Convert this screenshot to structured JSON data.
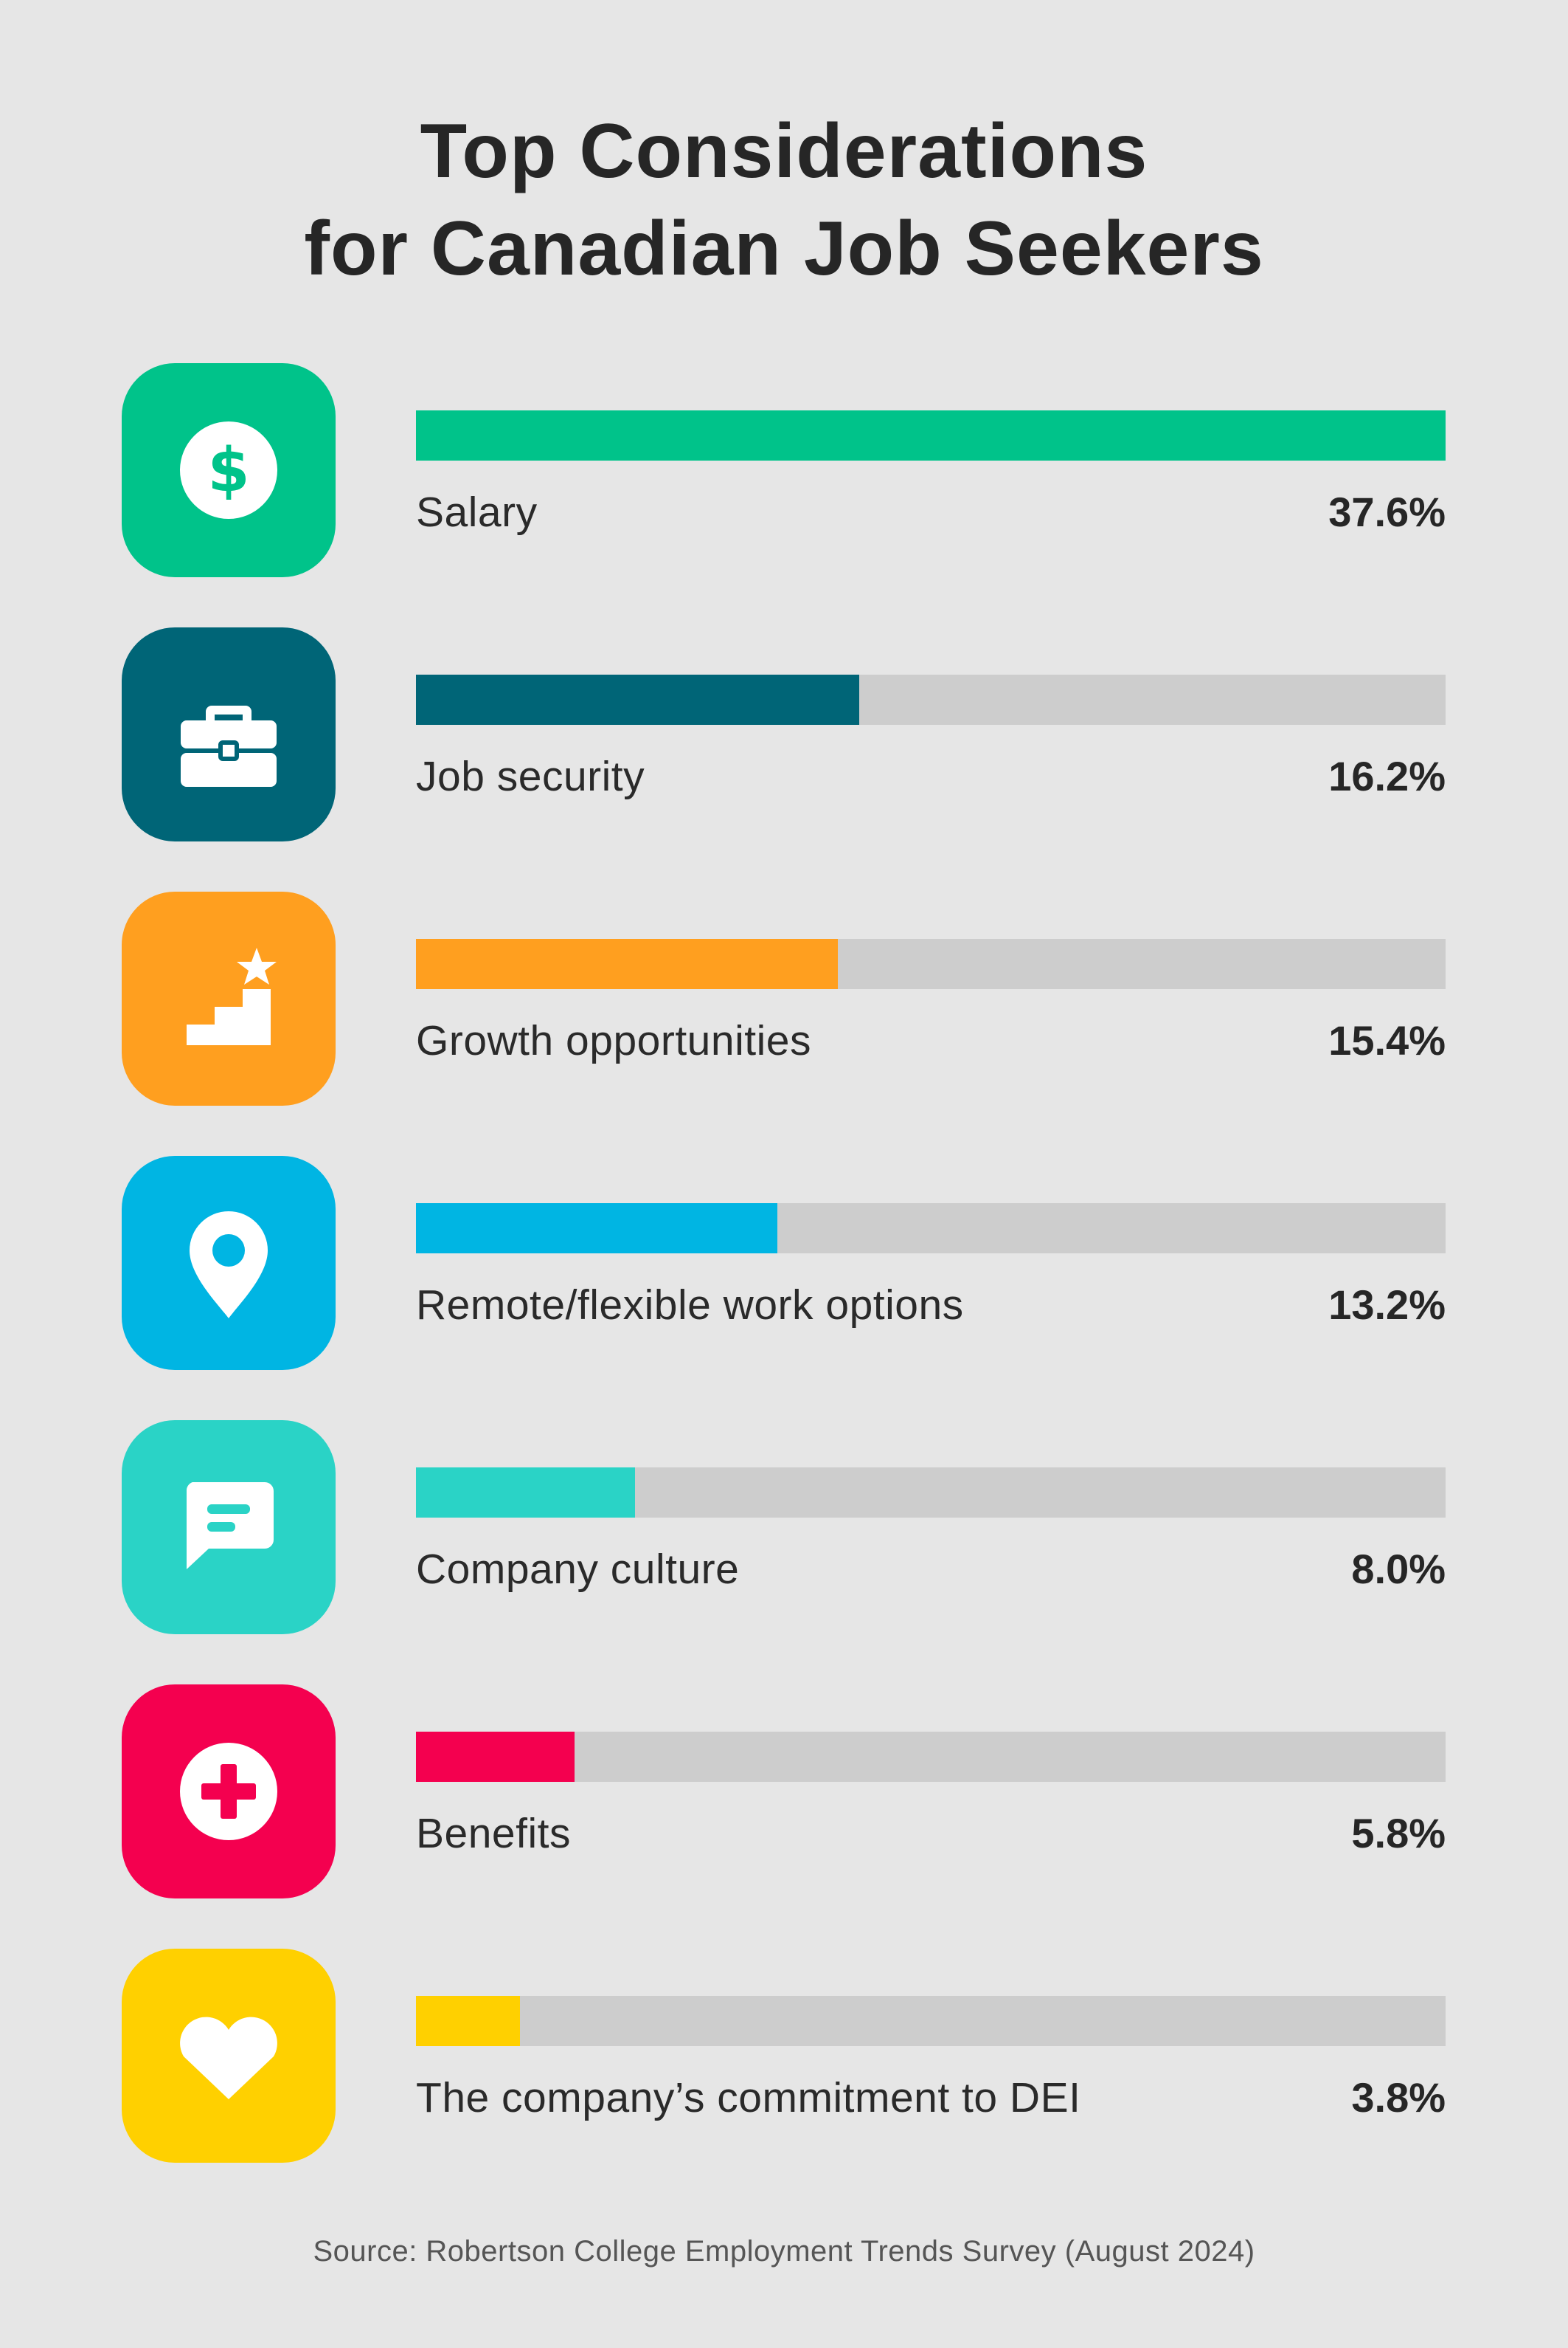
{
  "header": {
    "title_line1": "Top Considerations",
    "title_line2": "for Canadian Job Seekers"
  },
  "chart_data": {
    "type": "bar",
    "orientation": "horizontal",
    "title": "Top Considerations for Canadian Job Seekers",
    "xlim": [
      0,
      37.6
    ],
    "categories": [
      "Salary",
      "Job security",
      "Growth opportunities",
      "Remote/flexible work options",
      "Company culture",
      "Benefits",
      "The company’s commitment to DEI"
    ],
    "values": [
      37.6,
      16.2,
      15.4,
      13.2,
      8.0,
      5.8,
      3.8
    ],
    "value_labels": [
      "37.6%",
      "16.2%",
      "15.4%",
      "13.2%",
      "8.0%",
      "5.8%",
      "3.8%"
    ],
    "colors": [
      "#00c38a",
      "#006577",
      "#ff9f1f",
      "#00b5e3",
      "#2ad3c6",
      "#f4004f",
      "#ffd000"
    ],
    "track_color": "#cdcdcd",
    "icons": [
      "dollar-icon",
      "briefcase-icon",
      "stairs-star-icon",
      "location-pin-icon",
      "chat-bubble-icon",
      "medical-cross-icon",
      "heart-icon"
    ]
  },
  "footer": {
    "source": "Source: Robertson College Employment Trends Survey (August 2024)"
  }
}
